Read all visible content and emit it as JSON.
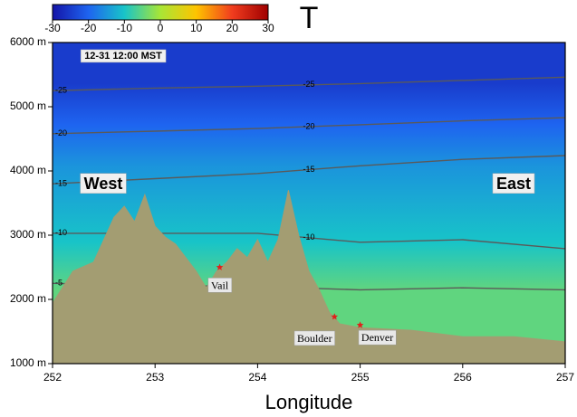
{
  "chart_data": {
    "type": "cross-section",
    "title": "T",
    "timestamp": "12-31 12:00 MST",
    "x_label": "Longitude",
    "xlim": [
      252,
      257
    ],
    "xticks": [
      252,
      253,
      254,
      255,
      256,
      257
    ],
    "ylim": [
      1000,
      6000
    ],
    "yticks": [
      {
        "value": 1000,
        "label": "1000 m"
      },
      {
        "value": 2000,
        "label": "2000 m"
      },
      {
        "value": 3000,
        "label": "3000 m"
      },
      {
        "value": 4000,
        "label": "4000 m"
      },
      {
        "value": 5000,
        "label": "5000 m"
      },
      {
        "value": 6000,
        "label": "6000 m"
      }
    ],
    "colorbar": {
      "clim": [
        -30,
        30
      ],
      "ticks": [
        -30,
        -20,
        -10,
        0,
        10,
        20,
        30
      ],
      "colormap": [
        "#1414a8",
        "#1e64f0",
        "#18c4c8",
        "#a8e636",
        "#ffc400",
        "#f03c1e",
        "#a00000"
      ]
    },
    "contours": [
      {
        "level": -25,
        "x": [
          252,
          253,
          254,
          255,
          256,
          257
        ],
        "values": [
          5250,
          5290,
          5320,
          5360,
          5410,
          5460
        ]
      },
      {
        "level": -20,
        "x": [
          252,
          253,
          254,
          255,
          256,
          257
        ],
        "values": [
          4580,
          4620,
          4660,
          4720,
          4780,
          4830
        ]
      },
      {
        "level": -15,
        "x": [
          252,
          253,
          254,
          255,
          256,
          257
        ],
        "values": [
          3800,
          3880,
          3960,
          4080,
          4180,
          4240
        ]
      },
      {
        "level": -10,
        "x": [
          252,
          253,
          254,
          255,
          256,
          257
        ],
        "values": [
          3030,
          3030,
          3030,
          2890,
          2930,
          2790
        ]
      },
      {
        "level": -5,
        "x": [
          252,
          253,
          254,
          255,
          256,
          257
        ],
        "values": [
          2250,
          2220,
          2200,
          2150,
          2180,
          2150
        ]
      }
    ],
    "terrain": {
      "color": "#a39d72",
      "x": [
        252,
        252.2,
        252.4,
        252.6,
        252.7,
        252.8,
        252.9,
        253,
        253.1,
        253.2,
        253.3,
        253.4,
        253.5,
        253.6,
        253.7,
        253.8,
        253.9,
        254,
        254.1,
        254.2,
        254.3,
        254.4,
        254.5,
        254.6,
        254.7,
        254.8,
        254.9,
        255,
        255.5,
        256,
        256.5,
        257
      ],
      "values": [
        1940,
        2440,
        2580,
        3280,
        3450,
        3210,
        3630,
        3140,
        2970,
        2860,
        2650,
        2440,
        2180,
        2440,
        2580,
        2790,
        2650,
        2930,
        2580,
        2930,
        3700,
        3000,
        2440,
        2150,
        1800,
        1620,
        1590,
        1560,
        1520,
        1420,
        1420,
        1340
      ]
    },
    "regions": {
      "west": "West",
      "east": "East"
    },
    "places": [
      {
        "name": "Vail",
        "x": 253.63,
        "y": 2500,
        "color": "#e0201c"
      },
      {
        "name": "Boulder",
        "x": 254.75,
        "y": 1730,
        "color": "#e0201c"
      },
      {
        "name": "Denver",
        "x": 255.0,
        "y": 1600,
        "color": "#e0201c"
      }
    ]
  }
}
